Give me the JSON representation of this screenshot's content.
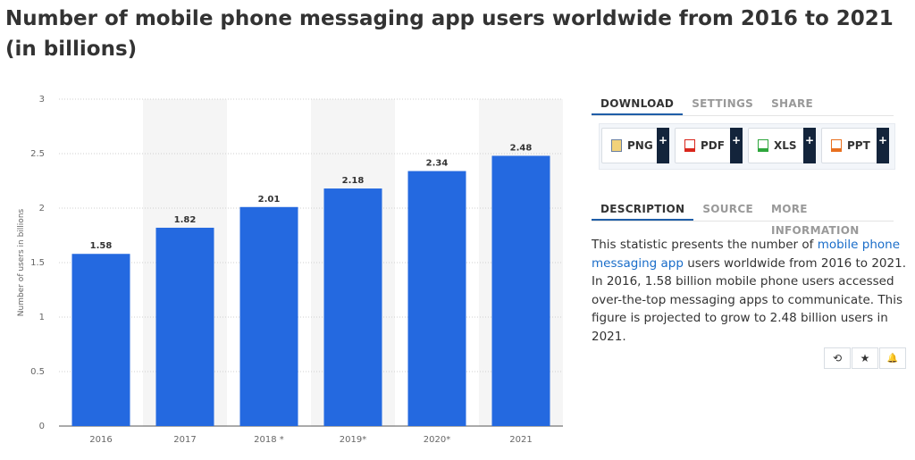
{
  "page_title": "Number of mobile phone messaging app users worldwide from 2016 to 2021 (in billions)",
  "chart_data": {
    "type": "bar",
    "categories": [
      "2016",
      "2017",
      "2018 *",
      "2019*",
      "2020*",
      "2021"
    ],
    "values": [
      1.58,
      1.82,
      2.01,
      2.18,
      2.34,
      2.48
    ],
    "data_labels": [
      "1.58",
      "1.82",
      "2.01",
      "2.18",
      "2.34",
      "2.48"
    ],
    "ylabel": "Number of users in billions",
    "ylim": [
      0,
      3
    ],
    "yticks": [
      0,
      0.5,
      1,
      1.5,
      2,
      2.5,
      3
    ],
    "ytick_labels": [
      "0",
      "0.5",
      "1",
      "1.5",
      "2",
      "2.5",
      "3"
    ],
    "bar_color": "#2469e0",
    "stripe_color": "#f5f5f5",
    "grid": true,
    "legend": "none"
  },
  "download_tabs": [
    {
      "label": "DOWNLOAD",
      "active": true
    },
    {
      "label": "SETTINGS",
      "active": false
    },
    {
      "label": "SHARE",
      "active": false
    }
  ],
  "download_buttons": [
    {
      "label": "PNG",
      "icon": "png-file-icon",
      "color": "#e6a21a"
    },
    {
      "label": "PDF",
      "icon": "pdf-file-icon",
      "color": "#d9261c"
    },
    {
      "label": "XLS",
      "icon": "xls-file-icon",
      "color": "#2ea63c"
    },
    {
      "label": "PPT",
      "icon": "ppt-file-icon",
      "color": "#e8701f"
    }
  ],
  "plus_label": "+",
  "info_tabs": [
    {
      "label": "DESCRIPTION",
      "active": true
    },
    {
      "label": "SOURCE",
      "active": false
    },
    {
      "label": "MORE INFORMATION",
      "active": false
    }
  ],
  "description": {
    "before_link": "This statistic presents the number of ",
    "link": "mobile phone messaging app",
    "after_link": " users worldwide from 2016 to 2021. In 2016, 1.58 billion mobile phone users accessed over-the-top messaging apps to communicate. This figure is projected to grow to 2.48 billion users in 2021."
  },
  "action_icons": [
    {
      "name": "history-icon",
      "glyph": "⟲"
    },
    {
      "name": "star-icon",
      "glyph": "★"
    },
    {
      "name": "bell-icon",
      "glyph": "🔔"
    }
  ]
}
